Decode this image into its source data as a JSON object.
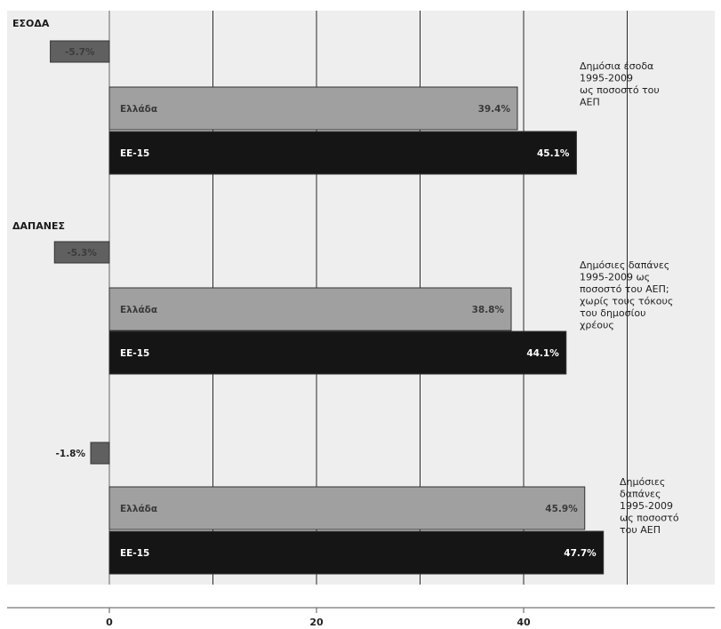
{
  "chart_data": {
    "type": "bar",
    "orientation": "horizontal",
    "xlim": [
      -5,
      58
    ],
    "xticks": [
      "0",
      "20",
      "40"
    ],
    "xtick_values": [
      0,
      20,
      40
    ],
    "grid": "vertical",
    "colors": {
      "background": "#eeeeee",
      "ellada": "#a0a0a0",
      "ee15": "#151515",
      "difference": "#606060",
      "gridline": "#2a2a2a"
    },
    "groups": [
      {
        "section_label": "ΕΣΟΔΑ",
        "title_lines": [
          {
            "text": "Δημόσια έσοδα",
            "bold": true
          },
          {
            "text": "1995-2009",
            "bold": false
          },
          {
            "text": "ως ποσοστό του",
            "bold": false
          },
          {
            "text": "ΑΕΠ",
            "bold": false
          }
        ],
        "difference": {
          "value": -5.7,
          "label": "-5.7%"
        },
        "bars": [
          {
            "name": "Ελλάδα",
            "value": 39.4,
            "label": "39.4%"
          },
          {
            "name": "ΕΕ-15",
            "value": 45.1,
            "label": "45.1%"
          }
        ]
      },
      {
        "section_label": "ΔΑΠΑΝΕΣ",
        "title_lines": [
          {
            "text": "Δημόσιες δαπάνες",
            "bold": true
          },
          {
            "text": "1995-2009 ως",
            "bold": false
          },
          {
            "text": "ποσοστό του ΑΕΠ;",
            "bold": false
          },
          {
            "text": "χωρίς τους τόκους",
            "bold": true
          },
          {
            "text": "του δημοσίου",
            "bold": true
          },
          {
            "text": "χρέους",
            "bold": true
          }
        ],
        "difference": {
          "value": -5.3,
          "label": "-5.3%"
        },
        "bars": [
          {
            "name": "Ελλάδα",
            "value": 38.8,
            "label": "38.8%"
          },
          {
            "name": "ΕΕ-15",
            "value": 44.1,
            "label": "44.1%"
          }
        ]
      },
      {
        "section_label": "",
        "title_lines": [
          {
            "text": "Δημόσιες",
            "bold": true
          },
          {
            "text": "δαπάνες",
            "bold": true
          },
          {
            "text": "1995-2009",
            "bold": false
          },
          {
            "text": "ως ποσοστό",
            "bold": false
          },
          {
            "text": "του ΑΕΠ",
            "bold": false
          }
        ],
        "difference": {
          "value": -1.8,
          "label": "-1.8%"
        },
        "bars": [
          {
            "name": "Ελλάδα",
            "value": 45.9,
            "label": "45.9%"
          },
          {
            "name": "ΕΕ-15",
            "value": 47.7,
            "label": "47.7%"
          }
        ]
      }
    ]
  }
}
